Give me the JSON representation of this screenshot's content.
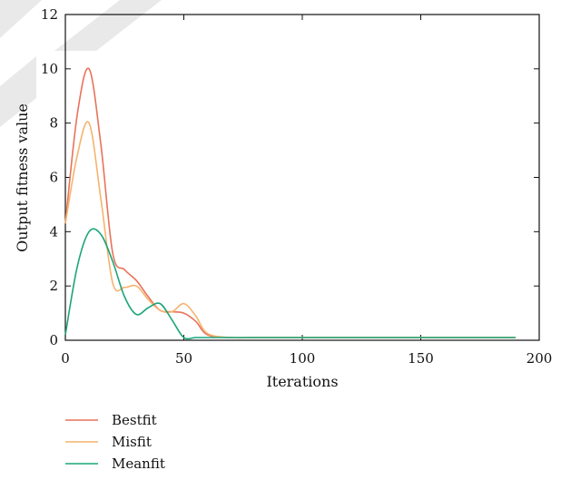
{
  "chart_data": {
    "type": "line",
    "title": "",
    "xlabel": "Iterations",
    "ylabel": "Output fitness value",
    "xlim": [
      0,
      200
    ],
    "ylim": [
      0,
      12
    ],
    "xticks": [
      0,
      50,
      100,
      150,
      200
    ],
    "yticks": [
      0,
      2,
      4,
      6,
      8,
      10,
      12
    ],
    "grid": false,
    "legend_position": "bottom-left below plot",
    "series": [
      {
        "name": "Bestfit",
        "color": "#e8735a",
        "x": [
          0,
          5,
          10,
          15,
          20,
          25,
          30,
          35,
          40,
          45,
          50,
          55,
          60,
          70,
          80,
          100,
          150,
          190
        ],
        "y": [
          4.3,
          8.3,
          10.0,
          7.2,
          3.2,
          2.6,
          2.2,
          1.6,
          1.1,
          1.05,
          1.0,
          0.7,
          0.2,
          0.1,
          0.1,
          0.1,
          0.1,
          0.1
        ]
      },
      {
        "name": "Misfit",
        "color": "#f5b36e",
        "x": [
          0,
          5,
          10,
          15,
          20,
          25,
          30,
          35,
          40,
          45,
          50,
          55,
          60,
          70,
          80,
          100,
          150,
          190
        ],
        "y": [
          4.3,
          6.8,
          8.0,
          5.2,
          2.1,
          1.95,
          2.0,
          1.5,
          1.1,
          1.05,
          1.35,
          0.9,
          0.25,
          0.1,
          0.1,
          0.1,
          0.1,
          0.1
        ]
      },
      {
        "name": "Meanfit",
        "color": "#1aa57a",
        "x": [
          0,
          5,
          10,
          15,
          20,
          25,
          30,
          35,
          40,
          45,
          50,
          55,
          60,
          70,
          80,
          100,
          150,
          190
        ],
        "y": [
          0.2,
          2.7,
          4.0,
          3.9,
          2.9,
          1.6,
          0.95,
          1.2,
          1.35,
          0.75,
          0.1,
          0.1,
          0.1,
          0.1,
          0.1,
          0.1,
          0.1,
          0.1
        ]
      }
    ]
  }
}
